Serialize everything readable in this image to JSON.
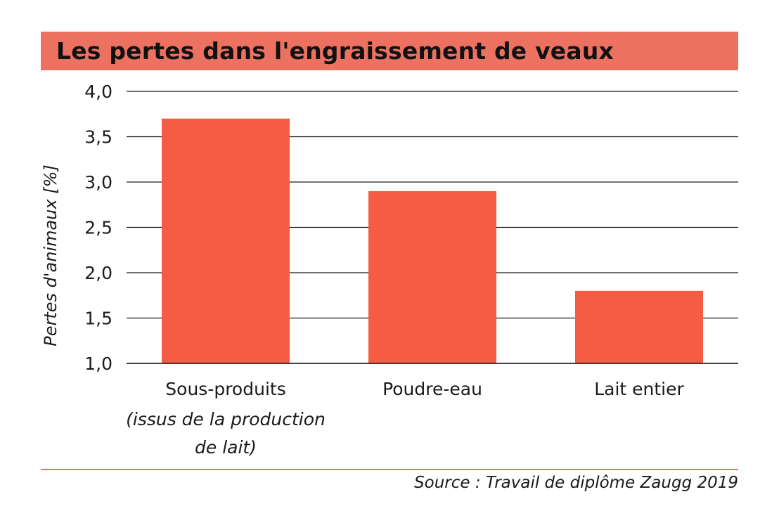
{
  "chart_data": {
    "type": "bar",
    "title": "Les pertes dans l'engraissement de veaux",
    "ylabel": "Pertes d'animaux [%]",
    "xlabel": "",
    "ylim": [
      1.0,
      4.0
    ],
    "yticks": [
      "1,0",
      "1,5",
      "2,0",
      "2,5",
      "3,0",
      "3,5",
      "4,0"
    ],
    "categories": [
      {
        "lines": [
          "Sous-produits"
        ],
        "italic_lines": [
          "(issus de la production",
          "de lait)"
        ]
      },
      {
        "lines": [
          "Poudre-eau"
        ],
        "italic_lines": []
      },
      {
        "lines": [
          "Lait entier"
        ],
        "italic_lines": []
      }
    ],
    "values": [
      3.7,
      2.9,
      1.8
    ],
    "bar_color": "#F45D43",
    "grid": true,
    "source": "Source : Travail de diplôme Zaugg 2019"
  },
  "colors": {
    "title_band": "#ED7161",
    "bar": "#F45D43",
    "rule": "#ED7161"
  }
}
